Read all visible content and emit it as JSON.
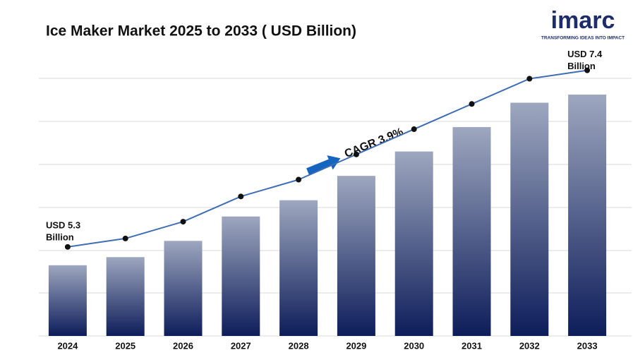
{
  "chart_data": {
    "type": "bar",
    "title": "Ice Maker Market 2025 to 2033 ( USD Billion)",
    "categories": [
      "2024",
      "2025",
      "2026",
      "2027",
      "2028",
      "2029",
      "2030",
      "2031",
      "2032",
      "2033"
    ],
    "values": [
      5.3,
      5.4,
      5.6,
      5.9,
      6.1,
      6.4,
      6.7,
      7.0,
      7.3,
      7.4
    ],
    "color": "#0d1d5a",
    "line_color": "#3f6db3",
    "ylim": [
      4.43,
      7.6
    ],
    "start_label": [
      "USD 5.3",
      "Billion"
    ],
    "end_label": [
      "USD 7.4",
      "Billion"
    ],
    "annotation": "CAGR  3.9%",
    "logo": {
      "name": "imarc",
      "tagline": "TRANSFORMING IDEAS INTO IMPACT"
    }
  }
}
